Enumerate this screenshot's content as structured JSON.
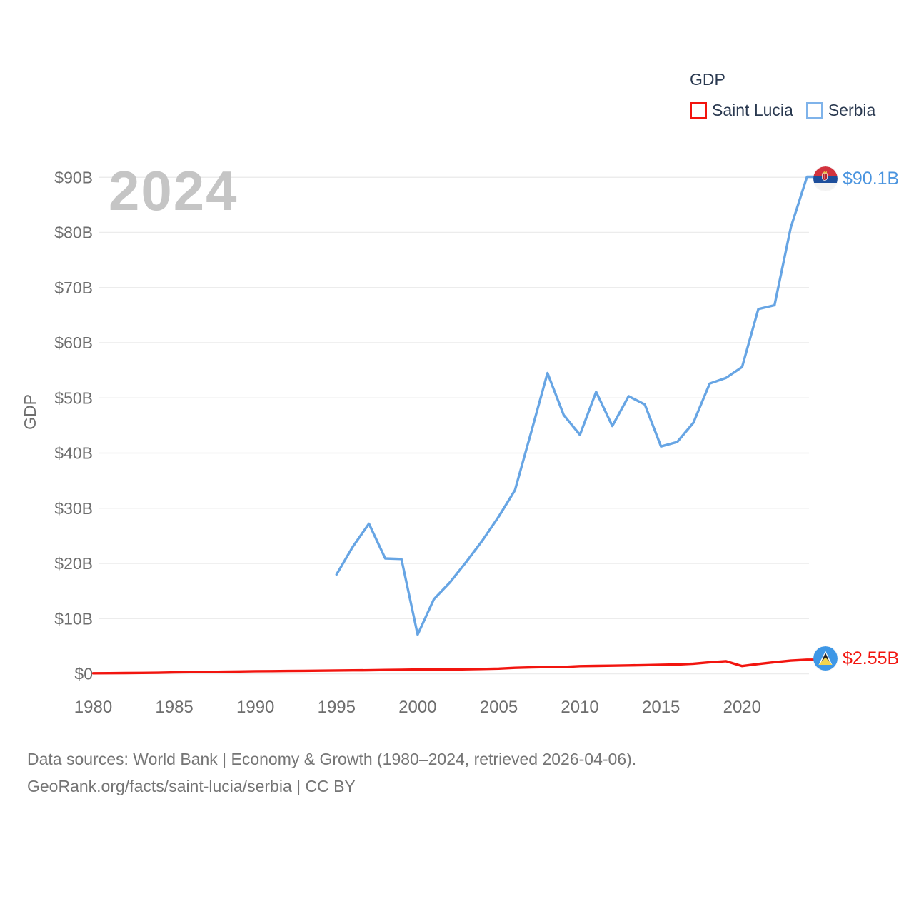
{
  "watermark": "2024",
  "legend": {
    "title": "GDP",
    "items": [
      {
        "label": "Saint Lucia",
        "color": "#f2150f"
      },
      {
        "label": "Serbia",
        "color": "#7fb3ea"
      }
    ]
  },
  "y_axis": {
    "label": "GDP",
    "tick_values": [
      0,
      10,
      20,
      30,
      40,
      50,
      60,
      70,
      80,
      90
    ],
    "tick_labels": [
      "$0",
      "$10B",
      "$20B",
      "$30B",
      "$40B",
      "$50B",
      "$60B",
      "$70B",
      "$80B",
      "$90B"
    ]
  },
  "x_axis": {
    "tick_values": [
      1980,
      1985,
      1990,
      1995,
      2000,
      2005,
      2010,
      2015,
      2020
    ]
  },
  "end_labels": [
    {
      "series": "Serbia",
      "text": "$90.1B",
      "flag": "serbia-flag-icon"
    },
    {
      "series": "Saint Lucia",
      "text": "$2.55B",
      "flag": "saint-lucia-flag-icon"
    }
  ],
  "footer": {
    "line1": "Data sources: World Bank | Economy & Growth (1980–2024, retrieved 2026-04-06).",
    "line2": "GeoRank.org/facts/saint-lucia/serbia | CC BY"
  },
  "chart_data": {
    "type": "line",
    "title": "GDP",
    "ylabel": "GDP",
    "xlabel": "",
    "ylim": [
      0,
      90
    ],
    "xlim": [
      1980,
      2024
    ],
    "grid": "horizontal",
    "legend_position": "top-right",
    "x": [
      1980,
      1981,
      1982,
      1983,
      1984,
      1985,
      1986,
      1987,
      1988,
      1989,
      1990,
      1991,
      1992,
      1993,
      1994,
      1995,
      1996,
      1997,
      1998,
      1999,
      2000,
      2001,
      2002,
      2003,
      2004,
      2005,
      2006,
      2007,
      2008,
      2009,
      2010,
      2011,
      2012,
      2013,
      2014,
      2015,
      2016,
      2017,
      2018,
      2019,
      2020,
      2021,
      2022,
      2023,
      2024
    ],
    "series": [
      {
        "name": "Saint Lucia",
        "color": "#f2150f",
        "unit": "billion USD",
        "values": [
          0.09,
          0.11,
          0.13,
          0.15,
          0.18,
          0.24,
          0.28,
          0.33,
          0.38,
          0.42,
          0.46,
          0.48,
          0.51,
          0.53,
          0.56,
          0.59,
          0.62,
          0.64,
          0.69,
          0.73,
          0.77,
          0.75,
          0.76,
          0.82,
          0.87,
          0.93,
          1.07,
          1.15,
          1.22,
          1.23,
          1.38,
          1.43,
          1.46,
          1.51,
          1.57,
          1.63,
          1.68,
          1.83,
          2.08,
          2.28,
          1.4,
          1.77,
          2.1,
          2.38,
          2.55
        ]
      },
      {
        "name": "Serbia",
        "color": "#67a5e4",
        "unit": "billion USD",
        "values": [
          null,
          null,
          null,
          null,
          null,
          null,
          null,
          null,
          null,
          null,
          null,
          null,
          null,
          null,
          null,
          18.0,
          23.0,
          27.2,
          20.9,
          20.8,
          7.1,
          13.5,
          16.6,
          20.3,
          24.2,
          28.5,
          33.3,
          43.8,
          54.5,
          46.9,
          43.3,
          51.1,
          44.9,
          50.3,
          48.8,
          41.2,
          42.0,
          45.5,
          52.6,
          53.6,
          55.6,
          66.1,
          66.8,
          80.9,
          90.1
        ]
      }
    ]
  }
}
